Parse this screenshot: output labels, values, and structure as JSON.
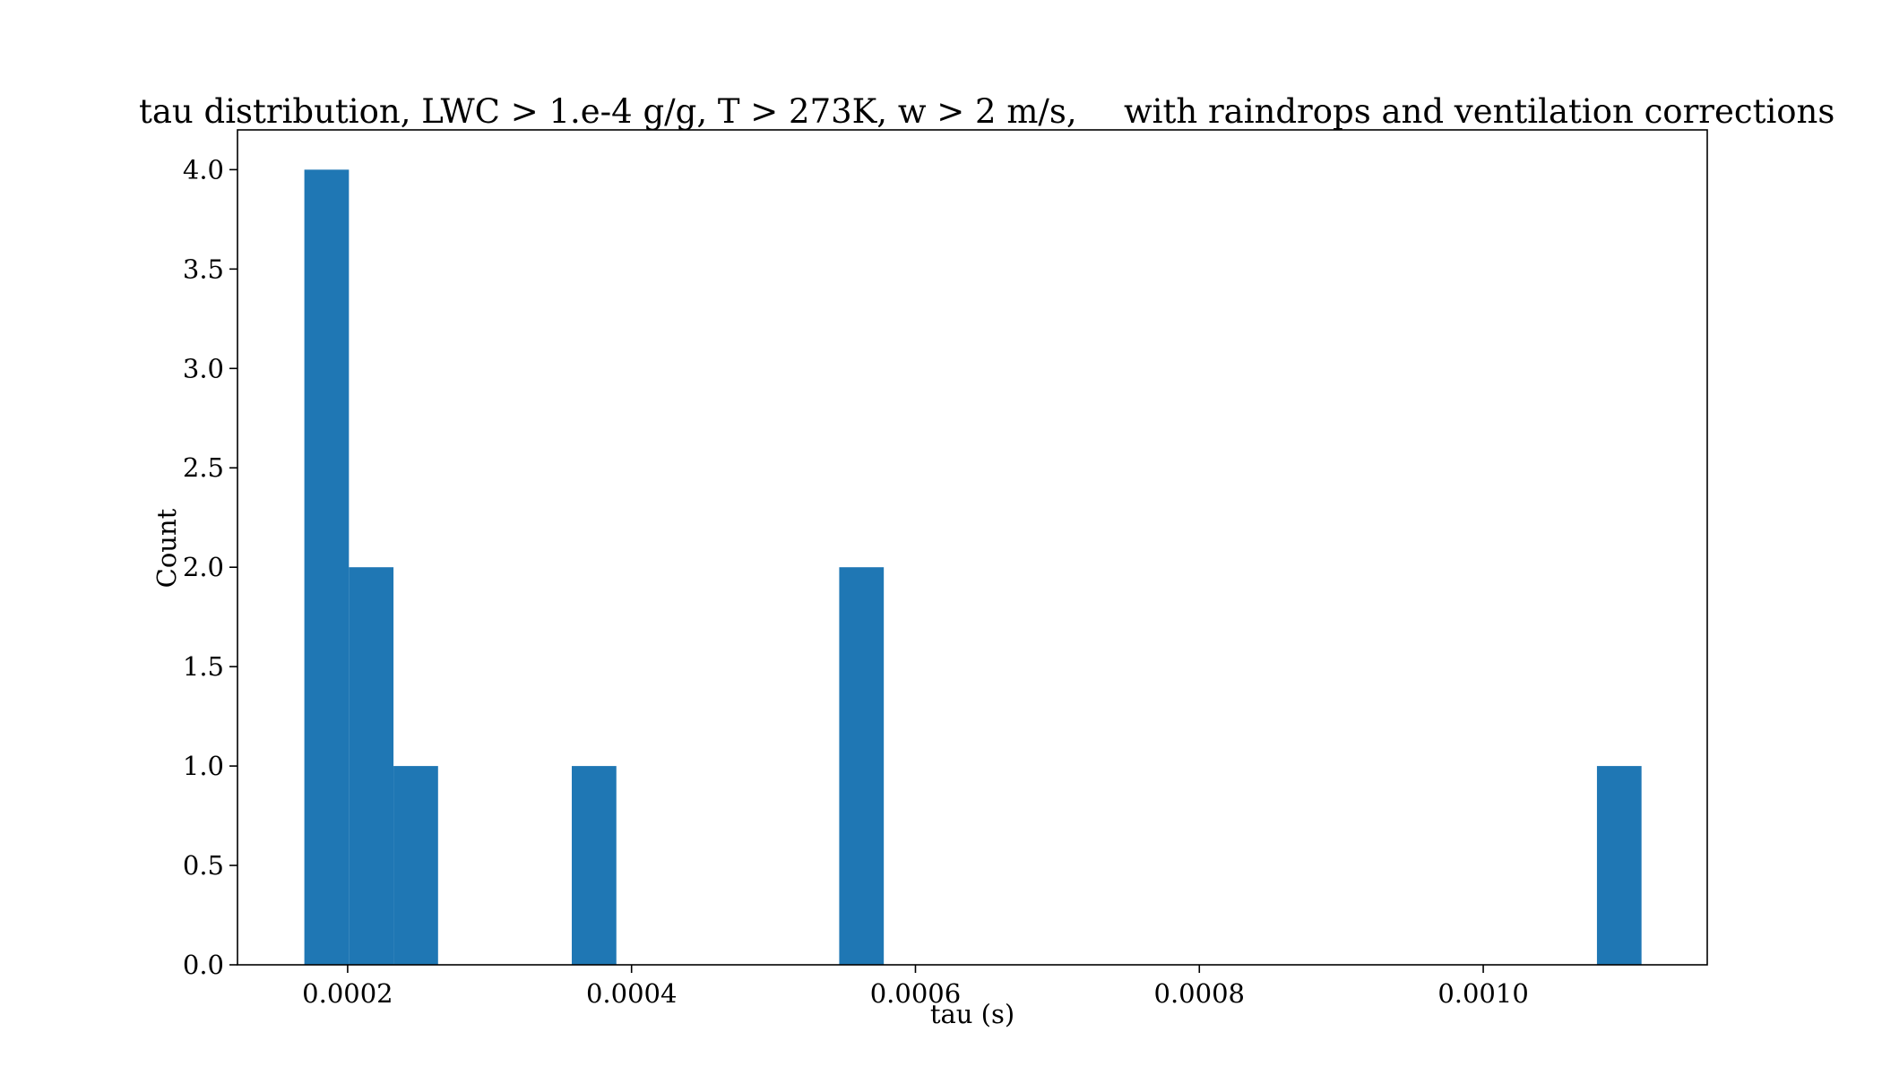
{
  "chart_data": {
    "type": "bar",
    "title_left": "tau distribution, LWC > 1.e-4 g/g, T > 273K, w > 2 m/s,",
    "title_right": "with raindrops and ventilation corrections",
    "xlabel": "tau (s)",
    "ylabel": "Count",
    "xlim": [
      0.0001224,
      0.0011578
    ],
    "ylim": [
      0,
      4.2
    ],
    "bin_edges": [
      0.0001695,
      0.0002009,
      0.0002323,
      0.0002637,
      0.0002951,
      0.0003265,
      0.0003579,
      0.0003893,
      0.0004207,
      0.0004521,
      0.0004835,
      0.0005149,
      0.0005463,
      0.0005777,
      0.0006091,
      0.0006405,
      0.0006719,
      0.0007033,
      0.0007347,
      0.0007661,
      0.0007975,
      0.0008289,
      0.0008603,
      0.0008917,
      0.0009231,
      0.0009545,
      0.0009859,
      0.0010173,
      0.0010487,
      0.0010801,
      0.0011115
    ],
    "values": [
      4,
      2,
      1,
      0,
      0,
      0,
      1,
      0,
      0,
      0,
      0,
      0,
      2,
      0,
      0,
      0,
      0,
      0,
      0,
      0,
      0,
      0,
      0,
      0,
      0,
      0,
      0,
      0,
      0,
      1
    ],
    "x_ticks": [
      {
        "value": 0.0002,
        "label": "0.0002"
      },
      {
        "value": 0.0004,
        "label": "0.0004"
      },
      {
        "value": 0.0006,
        "label": "0.0006"
      },
      {
        "value": 0.0008,
        "label": "0.0008"
      },
      {
        "value": 0.001,
        "label": "0.0010"
      }
    ],
    "y_ticks": [
      {
        "value": 0,
        "label": "0.0"
      },
      {
        "value": 0.5,
        "label": "0.5"
      },
      {
        "value": 1,
        "label": "1.0"
      },
      {
        "value": 1.5,
        "label": "1.5"
      },
      {
        "value": 2,
        "label": "2.0"
      },
      {
        "value": 2.5,
        "label": "2.5"
      },
      {
        "value": 3,
        "label": "3.0"
      },
      {
        "value": 3.5,
        "label": "3.5"
      },
      {
        "value": 4,
        "label": "4.0"
      }
    ],
    "grid": false,
    "bar_color": "#1f77b4"
  }
}
